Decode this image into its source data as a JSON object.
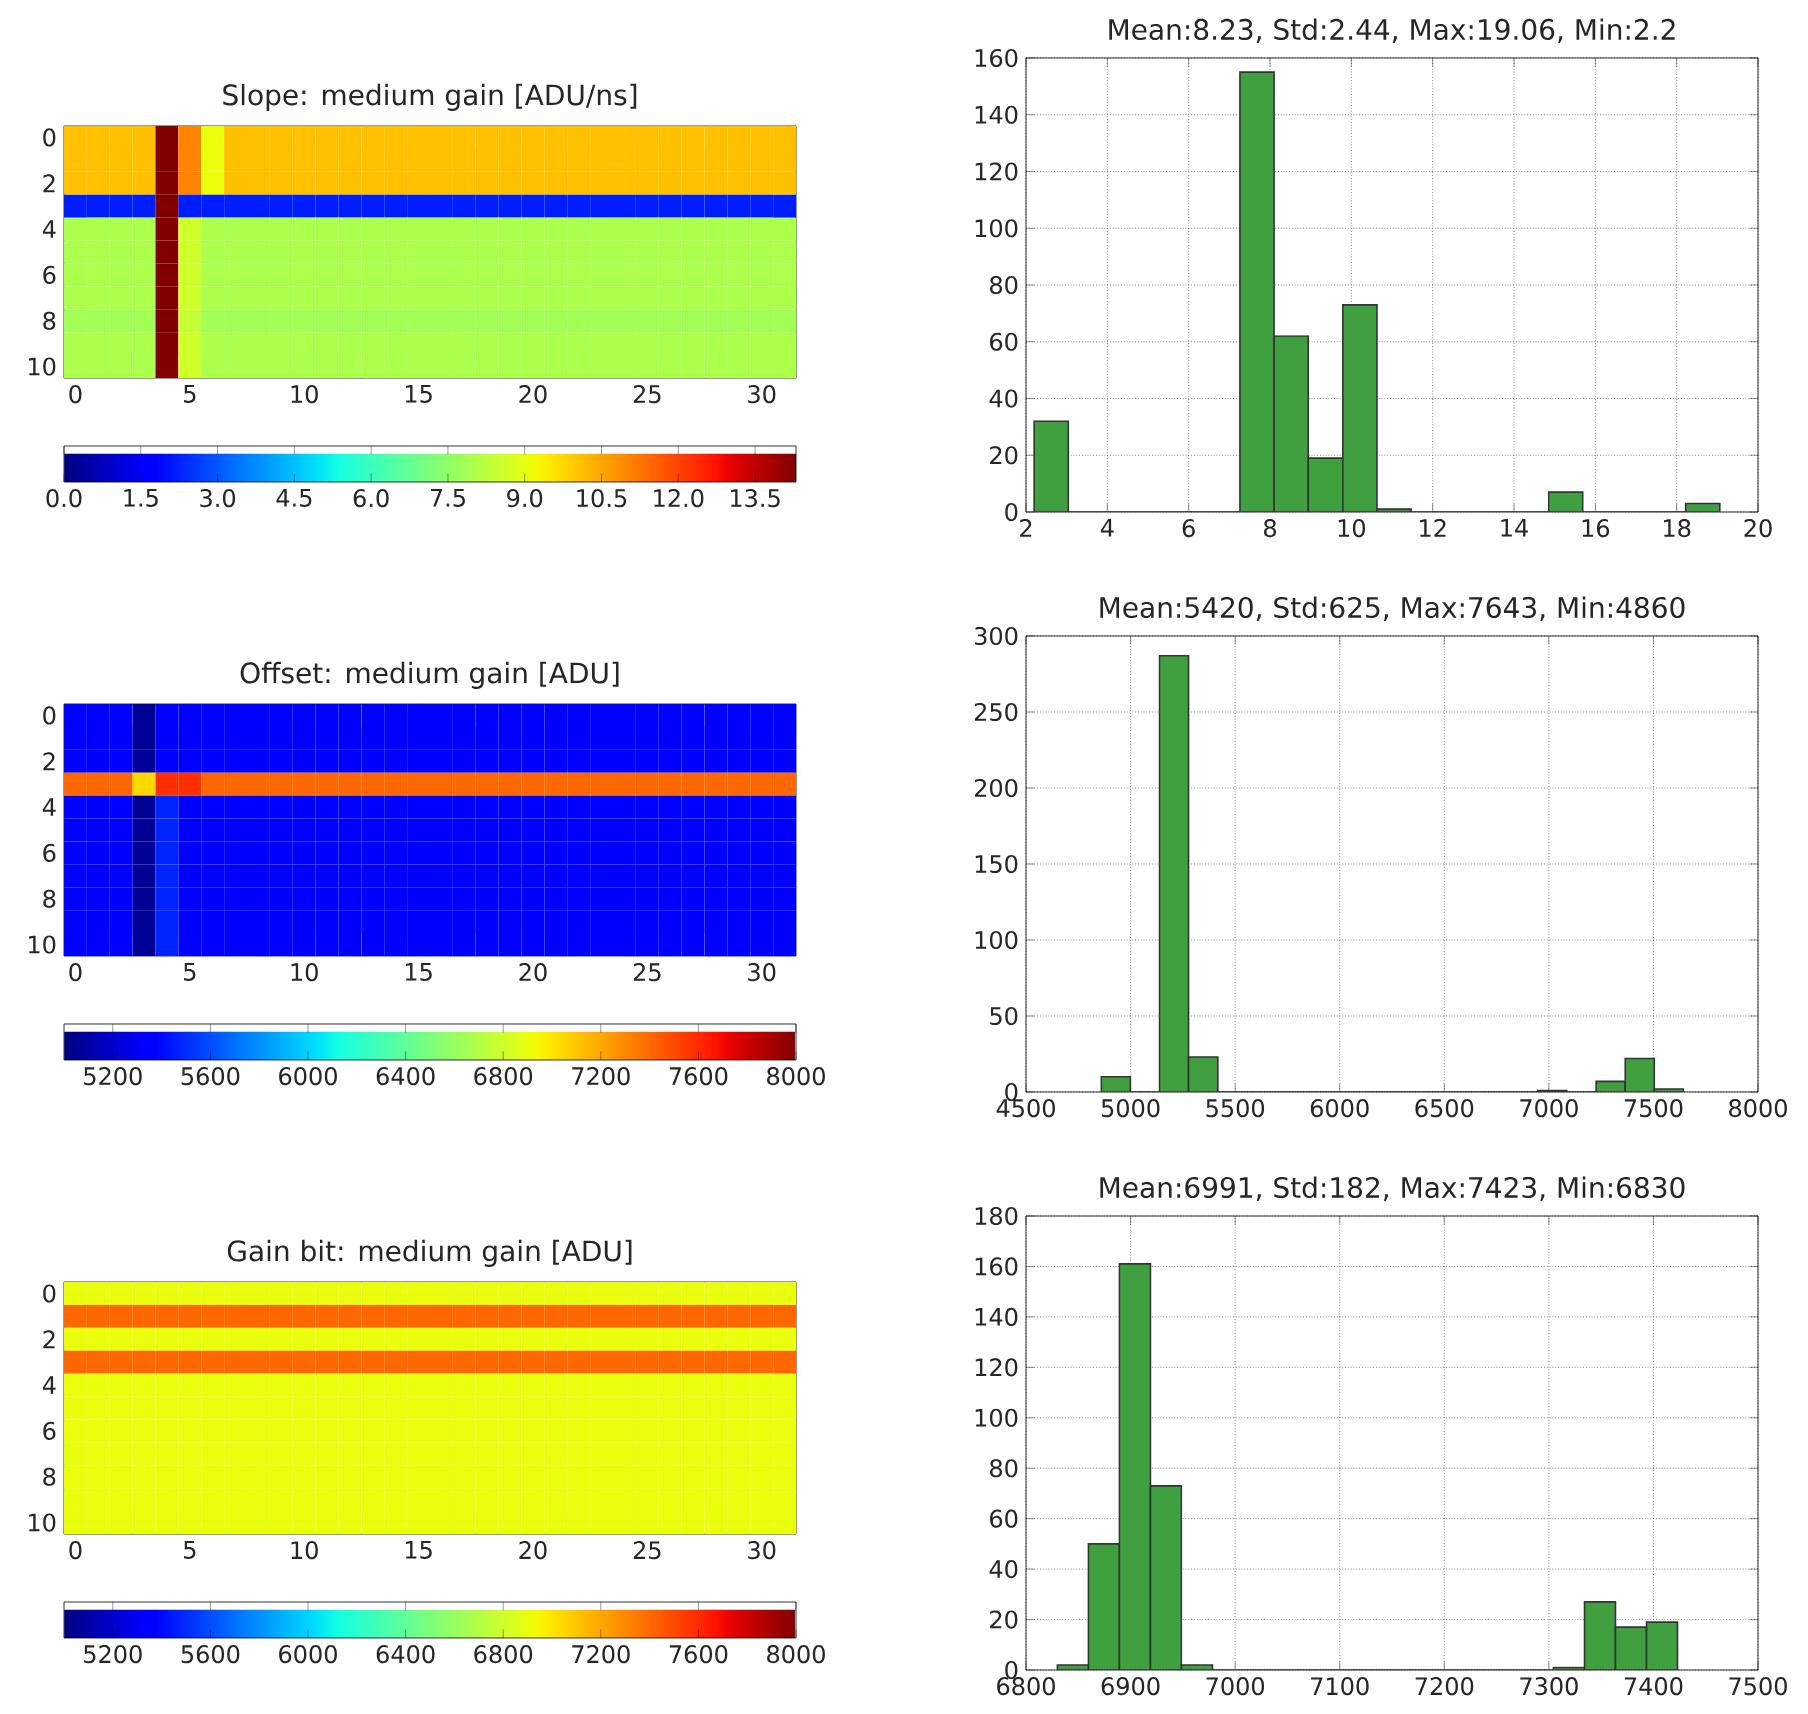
{
  "chart_data": [
    {
      "type": "heatmap",
      "title": "Slope: medium gain [ADU/ns]",
      "categories": [
        "0",
        null,
        null,
        null,
        null,
        "5",
        null,
        null,
        null,
        null,
        "10",
        null,
        null,
        null,
        null,
        "15",
        null,
        null,
        null,
        null,
        "20",
        null,
        null,
        null,
        null,
        "25",
        null,
        null,
        null,
        null,
        "30",
        null
      ],
      "y_categories": [
        "0",
        null,
        "2",
        null,
        "4",
        null,
        "6",
        null,
        "8",
        null,
        "10"
      ],
      "clim": [
        0,
        14.3
      ],
      "cticks": [
        {
          "value": 0,
          "label": "0.0"
        },
        {
          "value": 1.5,
          "label": "1.5"
        },
        {
          "value": 3,
          "label": "3.0"
        },
        {
          "value": 4.5,
          "label": "4.5"
        },
        {
          "value": 6,
          "label": "6.0"
        },
        {
          "value": 7.5,
          "label": "7.5"
        },
        {
          "value": 9,
          "label": "9.0"
        },
        {
          "value": 10.5,
          "label": "10.5"
        },
        {
          "value": 12,
          "label": "12.0"
        },
        {
          "value": 13.5,
          "label": "13.5"
        }
      ],
      "cells": [
        [
          10.1,
          10.1,
          10.1,
          10.1,
          14.3,
          11.0,
          9.1,
          10.1,
          10.1,
          10.1,
          10.1,
          10.1,
          10.1,
          10.1,
          10.1,
          10.1,
          10.1,
          10.1,
          10.1,
          10.1,
          10.1,
          10.1,
          10.1,
          10.1,
          10.1,
          10.1,
          10.1,
          10.1,
          10.1,
          10.1,
          10.1,
          10.1
        ],
        [
          10.1,
          10.1,
          10.1,
          10.1,
          14.3,
          11.0,
          9.1,
          10.1,
          10.1,
          10.1,
          10.1,
          10.1,
          10.1,
          10.1,
          10.1,
          10.1,
          10.1,
          10.1,
          10.1,
          10.1,
          10.1,
          10.1,
          10.1,
          10.1,
          10.1,
          10.1,
          10.1,
          10.1,
          10.1,
          10.1,
          10.1,
          10.1
        ],
        [
          10.1,
          10.1,
          10.1,
          10.1,
          14.3,
          11.0,
          9.1,
          10.1,
          10.1,
          10.1,
          10.1,
          10.1,
          10.1,
          10.1,
          10.1,
          10.1,
          10.1,
          10.1,
          10.1,
          10.1,
          10.1,
          10.1,
          10.1,
          10.1,
          10.1,
          10.1,
          10.1,
          10.1,
          10.1,
          10.1,
          10.1,
          10.1
        ],
        [
          2.2,
          2.2,
          2.2,
          2.2,
          14.3,
          2.2,
          2.2,
          2.2,
          2.2,
          2.2,
          2.2,
          2.2,
          2.2,
          2.2,
          2.2,
          2.2,
          2.2,
          2.2,
          2.2,
          2.2,
          2.2,
          2.2,
          2.2,
          2.2,
          2.2,
          2.2,
          2.2,
          2.2,
          2.2,
          2.2,
          2.2,
          2.2
        ],
        [
          8.0,
          8.0,
          8.0,
          8.0,
          14.3,
          8.6,
          8.0,
          8.0,
          8.0,
          8.0,
          8.0,
          8.0,
          8.0,
          8.0,
          8.0,
          8.0,
          8.0,
          8.0,
          8.0,
          8.0,
          8.0,
          8.0,
          8.0,
          8.0,
          8.0,
          8.0,
          8.0,
          8.0,
          8.0,
          8.0,
          8.0,
          8.0
        ],
        [
          8.0,
          8.0,
          8.0,
          8.0,
          14.3,
          8.6,
          8.0,
          8.0,
          8.0,
          8.0,
          8.0,
          8.0,
          8.0,
          8.0,
          8.0,
          8.0,
          8.0,
          8.0,
          8.0,
          8.0,
          8.0,
          8.0,
          8.0,
          8.0,
          8.0,
          8.0,
          8.0,
          8.0,
          8.0,
          8.0,
          8.0,
          8.0
        ],
        [
          8.0,
          8.0,
          8.0,
          8.0,
          14.3,
          8.6,
          8.0,
          8.0,
          8.0,
          8.0,
          8.0,
          8.0,
          8.0,
          8.0,
          8.0,
          8.0,
          8.0,
          8.0,
          8.0,
          8.0,
          8.0,
          8.0,
          8.0,
          8.0,
          8.0,
          8.0,
          8.0,
          8.0,
          8.0,
          8.0,
          8.0,
          8.0
        ],
        [
          8.0,
          8.0,
          8.0,
          8.0,
          14.3,
          8.6,
          8.0,
          8.0,
          8.0,
          8.0,
          8.0,
          8.0,
          8.0,
          8.0,
          8.0,
          8.0,
          8.0,
          8.0,
          8.0,
          8.0,
          8.0,
          8.0,
          8.0,
          8.0,
          8.0,
          8.0,
          8.0,
          8.0,
          8.0,
          8.0,
          8.0,
          8.0
        ],
        [
          7.8,
          7.8,
          7.8,
          7.8,
          14.3,
          8.4,
          7.8,
          7.8,
          7.8,
          7.8,
          7.8,
          7.8,
          7.8,
          7.8,
          7.8,
          7.8,
          7.8,
          7.8,
          7.8,
          7.8,
          7.8,
          7.8,
          7.8,
          7.8,
          7.8,
          7.8,
          7.8,
          7.8,
          7.8,
          7.8,
          7.8,
          7.8
        ],
        [
          8.0,
          8.0,
          8.0,
          8.0,
          14.3,
          8.6,
          8.0,
          8.0,
          8.0,
          8.0,
          8.0,
          8.0,
          8.0,
          8.0,
          8.0,
          8.0,
          8.0,
          8.0,
          8.0,
          8.0,
          8.0,
          8.0,
          8.0,
          8.0,
          8.0,
          8.0,
          8.0,
          8.0,
          8.0,
          8.0,
          8.0,
          8.0
        ],
        [
          8.0,
          8.0,
          8.0,
          8.0,
          14.3,
          8.6,
          8.0,
          8.0,
          8.0,
          8.0,
          8.0,
          8.0,
          8.0,
          8.0,
          8.0,
          8.0,
          8.0,
          8.0,
          8.0,
          8.0,
          8.0,
          8.0,
          8.0,
          8.0,
          8.0,
          8.0,
          8.0,
          8.0,
          8.0,
          8.0,
          8.0,
          8.0
        ]
      ]
    },
    {
      "type": "histogram",
      "title": "Mean:8.23, Std:2.44, Max:19.06, Min:2.2",
      "color": "#40a040",
      "grid": true,
      "bins": [
        2.2,
        3.04,
        3.89,
        4.73,
        5.57,
        6.42,
        7.26,
        8.1,
        8.94,
        9.79,
        10.63,
        11.47,
        12.32,
        13.16,
        14.0,
        14.85,
        15.69,
        16.53,
        17.37,
        18.22,
        19.06
      ],
      "values": [
        32,
        0,
        0,
        0,
        0,
        0,
        155,
        62,
        19,
        73,
        1,
        0,
        0,
        0,
        0,
        7,
        0,
        0,
        0,
        3
      ],
      "xlim": [
        2,
        20
      ],
      "xticks": [
        2,
        4,
        6,
        8,
        10,
        12,
        14,
        16,
        18,
        20
      ],
      "ylim": [
        0,
        160
      ],
      "yticks": [
        0,
        20,
        40,
        60,
        80,
        100,
        120,
        140,
        160
      ]
    },
    {
      "type": "heatmap",
      "title": "Offset: medium gain [ADU]",
      "categories": [
        "0",
        null,
        null,
        null,
        null,
        "5",
        null,
        null,
        null,
        null,
        "10",
        null,
        null,
        null,
        null,
        "15",
        null,
        null,
        null,
        null,
        "20",
        null,
        null,
        null,
        null,
        "25",
        null,
        null,
        null,
        null,
        "30",
        null
      ],
      "y_categories": [
        "0",
        null,
        "2",
        null,
        "4",
        null,
        "6",
        null,
        "8",
        null,
        "10"
      ],
      "clim": [
        5000,
        8000
      ],
      "cticks": [
        5200,
        5600,
        6000,
        6400,
        6800,
        7200,
        7600,
        8000
      ],
      "cells": [
        [
          5370,
          5370,
          5370,
          5060,
          5370,
          5370,
          5370,
          5370,
          5370,
          5370,
          5370,
          5370,
          5370,
          5370,
          5370,
          5370,
          5370,
          5370,
          5370,
          5370,
          5370,
          5370,
          5370,
          5370,
          5370,
          5370,
          5370,
          5370,
          5370,
          5370,
          5370,
          5370
        ],
        [
          5370,
          5370,
          5370,
          5060,
          5370,
          5370,
          5370,
          5370,
          5370,
          5370,
          5370,
          5370,
          5370,
          5370,
          5370,
          5370,
          5370,
          5370,
          5370,
          5370,
          5370,
          5370,
          5370,
          5370,
          5370,
          5370,
          5370,
          5370,
          5370,
          5370,
          5370,
          5370
        ],
        [
          5370,
          5370,
          5370,
          5060,
          5370,
          5370,
          5370,
          5370,
          5370,
          5370,
          5370,
          5370,
          5370,
          5370,
          5370,
          5370,
          5370,
          5370,
          5370,
          5370,
          5370,
          5370,
          5370,
          5370,
          5370,
          5370,
          5370,
          5370,
          5370,
          5370,
          5370,
          5370
        ],
        [
          7400,
          7400,
          7400,
          7040,
          7580,
          7580,
          7400,
          7400,
          7400,
          7400,
          7400,
          7400,
          7400,
          7400,
          7400,
          7400,
          7400,
          7400,
          7400,
          7400,
          7400,
          7400,
          7400,
          7400,
          7400,
          7400,
          7400,
          7400,
          7400,
          7400,
          7400,
          7400
        ],
        [
          5370,
          5370,
          5370,
          5060,
          5480,
          5370,
          5370,
          5370,
          5370,
          5370,
          5370,
          5370,
          5370,
          5370,
          5370,
          5370,
          5370,
          5370,
          5370,
          5370,
          5370,
          5370,
          5370,
          5370,
          5370,
          5370,
          5370,
          5370,
          5370,
          5370,
          5370,
          5370
        ],
        [
          5370,
          5370,
          5370,
          5060,
          5480,
          5370,
          5370,
          5370,
          5370,
          5370,
          5370,
          5370,
          5370,
          5370,
          5370,
          5370,
          5370,
          5370,
          5370,
          5370,
          5370,
          5370,
          5370,
          5370,
          5370,
          5370,
          5370,
          5370,
          5370,
          5370,
          5370,
          5370
        ],
        [
          5370,
          5370,
          5370,
          5060,
          5480,
          5370,
          5370,
          5370,
          5370,
          5370,
          5370,
          5370,
          5370,
          5370,
          5370,
          5370,
          5370,
          5370,
          5370,
          5370,
          5370,
          5370,
          5370,
          5370,
          5370,
          5370,
          5370,
          5370,
          5370,
          5370,
          5370,
          5370
        ],
        [
          5370,
          5370,
          5370,
          5060,
          5480,
          5370,
          5370,
          5370,
          5370,
          5370,
          5370,
          5370,
          5370,
          5370,
          5370,
          5370,
          5370,
          5370,
          5370,
          5370,
          5370,
          5370,
          5370,
          5370,
          5370,
          5370,
          5370,
          5370,
          5370,
          5370,
          5370,
          5370
        ],
        [
          5370,
          5370,
          5370,
          5060,
          5480,
          5370,
          5370,
          5370,
          5370,
          5370,
          5370,
          5370,
          5370,
          5370,
          5370,
          5370,
          5370,
          5370,
          5370,
          5370,
          5370,
          5370,
          5370,
          5370,
          5370,
          5370,
          5370,
          5370,
          5370,
          5370,
          5370,
          5370
        ],
        [
          5370,
          5370,
          5370,
          5060,
          5480,
          5370,
          5370,
          5370,
          5370,
          5370,
          5370,
          5370,
          5370,
          5370,
          5370,
          5370,
          5370,
          5370,
          5370,
          5370,
          5370,
          5370,
          5370,
          5370,
          5370,
          5370,
          5370,
          5370,
          5370,
          5370,
          5370,
          5370
        ],
        [
          5370,
          5370,
          5370,
          5060,
          5480,
          5370,
          5370,
          5370,
          5370,
          5370,
          5370,
          5370,
          5370,
          5370,
          5370,
          5370,
          5370,
          5370,
          5370,
          5370,
          5370,
          5370,
          5370,
          5370,
          5370,
          5370,
          5370,
          5370,
          5370,
          5370,
          5370,
          5370
        ]
      ]
    },
    {
      "type": "histogram",
      "title": "Mean:5420, Std:625, Max:7643, Min:4860",
      "color": "#40a040",
      "grid": true,
      "bins": [
        4860,
        4999,
        5138,
        5277,
        5417,
        5556,
        5695,
        5834,
        5973,
        6112,
        6252,
        6391,
        6530,
        6669,
        6808,
        6947,
        7086,
        7226,
        7365,
        7504,
        7643
      ],
      "values": [
        10,
        0,
        287,
        23,
        0,
        0,
        0,
        0,
        0,
        0,
        0,
        0,
        0,
        0,
        0,
        1,
        0,
        7,
        22,
        2
      ],
      "xlim": [
        4500,
        8000
      ],
      "xticks": [
        4500,
        5000,
        5500,
        6000,
        6500,
        7000,
        7500,
        8000
      ],
      "ylim": [
        0,
        300
      ],
      "yticks": [
        0,
        50,
        100,
        150,
        200,
        250,
        300
      ]
    },
    {
      "type": "heatmap",
      "title": "Gain bit: medium gain [ADU]",
      "categories": [
        "0",
        null,
        null,
        null,
        null,
        "5",
        null,
        null,
        null,
        null,
        "10",
        null,
        null,
        null,
        null,
        "15",
        null,
        null,
        null,
        null,
        "20",
        null,
        null,
        null,
        null,
        "25",
        null,
        null,
        null,
        null,
        "30",
        null
      ],
      "y_categories": [
        "0",
        null,
        "2",
        null,
        "4",
        null,
        "6",
        null,
        "8",
        null,
        "10"
      ],
      "clim": [
        5000,
        8000
      ],
      "cticks": [
        5200,
        5600,
        6000,
        6400,
        6800,
        7200,
        7600,
        8000
      ],
      "cells": [
        [
          6900,
          6900,
          6900,
          6900,
          6900,
          6900,
          6900,
          6900,
          6900,
          6900,
          6900,
          6900,
          6900,
          6900,
          6900,
          6900,
          6900,
          6900,
          6900,
          6900,
          6900,
          6900,
          6900,
          6900,
          6900,
          6900,
          6900,
          6900,
          6900,
          6900,
          6900,
          6900
        ],
        [
          7400,
          7400,
          7400,
          7400,
          7400,
          7400,
          7400,
          7400,
          7400,
          7400,
          7400,
          7400,
          7400,
          7400,
          7400,
          7400,
          7400,
          7400,
          7400,
          7400,
          7400,
          7400,
          7400,
          7400,
          7400,
          7400,
          7400,
          7400,
          7400,
          7400,
          7400,
          7400
        ],
        [
          6900,
          6900,
          6900,
          6900,
          6900,
          6900,
          6900,
          6900,
          6900,
          6900,
          6900,
          6900,
          6900,
          6900,
          6900,
          6900,
          6900,
          6900,
          6900,
          6900,
          6900,
          6900,
          6900,
          6900,
          6900,
          6900,
          6900,
          6900,
          6900,
          6900,
          6900,
          6900
        ],
        [
          7400,
          7400,
          7400,
          7400,
          7400,
          7400,
          7400,
          7400,
          7400,
          7400,
          7400,
          7400,
          7400,
          7400,
          7400,
          7400,
          7400,
          7400,
          7400,
          7400,
          7400,
          7400,
          7400,
          7400,
          7400,
          7400,
          7400,
          7400,
          7400,
          7400,
          7400,
          7400
        ],
        [
          6900,
          6900,
          6900,
          6900,
          6900,
          6900,
          6900,
          6900,
          6900,
          6900,
          6900,
          6900,
          6900,
          6900,
          6900,
          6900,
          6900,
          6900,
          6900,
          6900,
          6900,
          6900,
          6900,
          6900,
          6900,
          6900,
          6900,
          6900,
          6900,
          6900,
          6900,
          6900
        ],
        [
          6900,
          6900,
          6900,
          6900,
          6900,
          6900,
          6900,
          6900,
          6900,
          6900,
          6900,
          6900,
          6900,
          6900,
          6900,
          6900,
          6900,
          6900,
          6900,
          6900,
          6900,
          6900,
          6900,
          6900,
          6900,
          6900,
          6900,
          6900,
          6900,
          6900,
          6900,
          6900
        ],
        [
          6900,
          6900,
          6900,
          6900,
          6900,
          6900,
          6900,
          6900,
          6900,
          6900,
          6900,
          6900,
          6900,
          6900,
          6900,
          6900,
          6900,
          6900,
          6900,
          6900,
          6900,
          6900,
          6900,
          6900,
          6900,
          6900,
          6900,
          6900,
          6900,
          6900,
          6900,
          6900
        ],
        [
          6900,
          6900,
          6900,
          6900,
          6900,
          6900,
          6900,
          6900,
          6900,
          6900,
          6900,
          6900,
          6900,
          6900,
          6900,
          6900,
          6900,
          6900,
          6900,
          6900,
          6900,
          6900,
          6900,
          6900,
          6900,
          6900,
          6900,
          6900,
          6900,
          6900,
          6900,
          6900
        ],
        [
          6900,
          6900,
          6900,
          6900,
          6900,
          6900,
          6900,
          6900,
          6900,
          6900,
          6900,
          6900,
          6900,
          6900,
          6900,
          6900,
          6900,
          6900,
          6900,
          6900,
          6900,
          6900,
          6900,
          6900,
          6900,
          6900,
          6900,
          6900,
          6900,
          6900,
          6900,
          6900
        ],
        [
          6900,
          6900,
          6900,
          6900,
          6900,
          6900,
          6900,
          6900,
          6900,
          6900,
          6900,
          6900,
          6900,
          6900,
          6900,
          6900,
          6900,
          6900,
          6900,
          6900,
          6900,
          6900,
          6900,
          6900,
          6900,
          6900,
          6900,
          6900,
          6900,
          6900,
          6900,
          6900
        ],
        [
          6900,
          6900,
          6900,
          6900,
          6900,
          6900,
          6900,
          6900,
          6900,
          6900,
          6900,
          6900,
          6900,
          6900,
          6900,
          6900,
          6900,
          6900,
          6900,
          6900,
          6900,
          6900,
          6900,
          6900,
          6900,
          6900,
          6900,
          6900,
          6900,
          6900,
          6900,
          6900
        ]
      ]
    },
    {
      "type": "histogram",
      "title": "Mean:6991, Std:182, Max:7423, Min:6830",
      "color": "#40a040",
      "grid": true,
      "bins": [
        6830,
        6859.7,
        6889.3,
        6919,
        6948.6,
        6978.3,
        7007.9,
        7037.6,
        7067.2,
        7096.9,
        7126.5,
        7156.2,
        7185.8,
        7215.5,
        7245.1,
        7274.8,
        7304.4,
        7334.1,
        7363.7,
        7393.4,
        7423
      ],
      "values": [
        2,
        50,
        161,
        73,
        2,
        0,
        0,
        0,
        0,
        0,
        0,
        0,
        0,
        0,
        0,
        0,
        1,
        27,
        17,
        19
      ],
      "xlim": [
        6800,
        7500
      ],
      "xticks": [
        6800,
        6900,
        7000,
        7100,
        7200,
        7300,
        7400,
        7500
      ],
      "ylim": [
        0,
        180
      ],
      "yticks": [
        0,
        20,
        40,
        60,
        80,
        100,
        120,
        140,
        160,
        180
      ]
    }
  ]
}
